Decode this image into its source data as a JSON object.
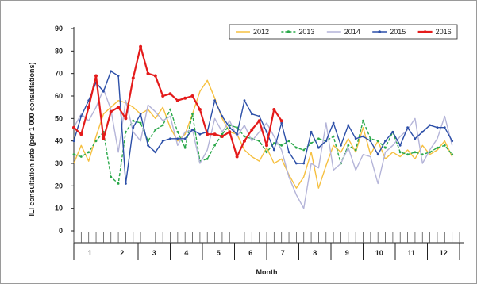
{
  "chart_data": {
    "type": "line",
    "xlabel": "Month",
    "ylabel": "ILI consultation rate (per 1 000 consultations)",
    "ylim": [
      0,
      90
    ],
    "y_ticks": [
      0,
      10,
      20,
      30,
      40,
      50,
      60,
      70,
      80,
      90
    ],
    "x_range": [
      1,
      53
    ],
    "month_labels": [
      "1",
      "2",
      "3",
      "4",
      "5",
      "6",
      "7",
      "8",
      "9",
      "10",
      "11",
      "12"
    ],
    "grid": false,
    "legend_position": "top-right",
    "series": [
      {
        "name": "2012",
        "color": "#f6c040",
        "dash": "solid",
        "markers": false,
        "weeks": [
          1,
          2,
          3,
          4,
          5,
          6,
          7,
          8,
          9,
          10,
          11,
          12,
          13,
          14,
          15,
          16,
          17,
          18,
          19,
          20,
          21,
          22,
          23,
          24,
          25,
          26,
          27,
          28,
          29,
          30,
          31,
          32,
          33,
          34,
          35,
          36,
          37,
          38,
          39,
          40,
          41,
          42,
          43,
          44,
          45,
          46,
          47,
          48,
          49,
          50,
          51,
          52
        ],
        "values": [
          30,
          38,
          31,
          42,
          52,
          55,
          58,
          57,
          55,
          52,
          54,
          50,
          55,
          46,
          40,
          43,
          52,
          62,
          67,
          59,
          50,
          44,
          43,
          36,
          33,
          31,
          37,
          30,
          32,
          25,
          19,
          24,
          35,
          19,
          29,
          38,
          35,
          41,
          35,
          46,
          34,
          40,
          32,
          35,
          33,
          36,
          32,
          38,
          34,
          36,
          40,
          33
        ]
      },
      {
        "name": "2013",
        "color": "#2aa84a",
        "dash": "dashed",
        "markers": true,
        "weeks": [
          1,
          2,
          3,
          4,
          5,
          6,
          7,
          8,
          9,
          10,
          11,
          12,
          13,
          14,
          15,
          16,
          17,
          18,
          19,
          20,
          21,
          22,
          23,
          24,
          25,
          26,
          27,
          28,
          29,
          30,
          31,
          32,
          33,
          34,
          35,
          36,
          37,
          38,
          39,
          40,
          41,
          42,
          43,
          44,
          45,
          46,
          47,
          48,
          49,
          50,
          51,
          52
        ],
        "values": [
          34,
          33,
          35,
          40,
          44,
          24,
          21,
          44,
          49,
          48,
          40,
          45,
          47,
          54,
          44,
          37,
          52,
          31,
          32,
          38,
          43,
          47,
          46,
          42,
          41,
          40,
          35,
          39,
          38,
          40,
          37,
          36,
          39,
          41,
          40,
          42,
          30,
          38,
          36,
          49,
          41,
          40,
          37,
          44,
          35,
          34,
          35,
          34,
          35,
          37,
          38,
          34
        ]
      },
      {
        "name": "2014",
        "color": "#b4b4d8",
        "dash": "solid",
        "markers": false,
        "weeks": [
          1,
          2,
          3,
          4,
          5,
          6,
          7,
          8,
          9,
          10,
          11,
          12,
          13,
          14,
          15,
          16,
          17,
          18,
          19,
          20,
          21,
          22,
          23,
          24,
          25,
          26,
          27,
          28,
          29,
          30,
          31,
          32,
          33,
          34,
          35,
          36,
          37,
          38,
          39,
          40,
          41,
          42,
          43,
          44,
          45,
          46,
          47,
          48,
          49,
          50,
          51,
          52
        ],
        "values": [
          46,
          52,
          49,
          55,
          63,
          54,
          35,
          58,
          44,
          40,
          56,
          53,
          49,
          51,
          38,
          44,
          45,
          30,
          36,
          50,
          44,
          49,
          42,
          47,
          40,
          44,
          48,
          42,
          36,
          24,
          16,
          10,
          30,
          28,
          48,
          27,
          30,
          37,
          27,
          34,
          33,
          21,
          35,
          38,
          42,
          45,
          50,
          30,
          36,
          41,
          51,
          38
        ]
      },
      {
        "name": "2015",
        "color": "#2c4fa8",
        "dash": "solid",
        "markers": true,
        "weeks": [
          1,
          2,
          3,
          4,
          5,
          6,
          7,
          8,
          9,
          10,
          11,
          12,
          13,
          14,
          15,
          16,
          17,
          18,
          19,
          20,
          21,
          22,
          23,
          24,
          25,
          26,
          27,
          28,
          29,
          30,
          31,
          32,
          33,
          34,
          35,
          36,
          37,
          38,
          39,
          40,
          41,
          42,
          43,
          44,
          45,
          46,
          47,
          48,
          49,
          50,
          51,
          52
        ],
        "values": [
          40,
          51,
          58,
          66,
          62,
          71,
          69,
          21,
          46,
          52,
          38,
          35,
          40,
          41,
          41,
          41,
          45,
          43,
          44,
          58,
          51,
          46,
          43,
          58,
          52,
          51,
          44,
          36,
          48,
          35,
          30,
          30,
          44,
          37,
          40,
          48,
          38,
          47,
          41,
          42,
          40,
          34,
          40,
          44,
          38,
          46,
          41,
          44,
          47,
          46,
          46,
          40
        ]
      },
      {
        "name": "2016",
        "color": "#e41b1b",
        "dash": "solid",
        "markers": true,
        "weeks": [
          1,
          2,
          3,
          4,
          5,
          6,
          7,
          8,
          9,
          10,
          11,
          12,
          13,
          14,
          15,
          16,
          17,
          18,
          19,
          20,
          21,
          22,
          23,
          24,
          25,
          26,
          27,
          28,
          29
        ],
        "values": [
          46,
          43,
          55,
          69,
          41,
          53,
          55,
          50,
          68,
          82,
          70,
          69,
          60,
          61,
          58,
          59,
          60,
          54,
          43,
          43,
          42,
          44,
          33,
          40,
          45,
          49,
          38,
          54,
          49
        ]
      }
    ]
  }
}
